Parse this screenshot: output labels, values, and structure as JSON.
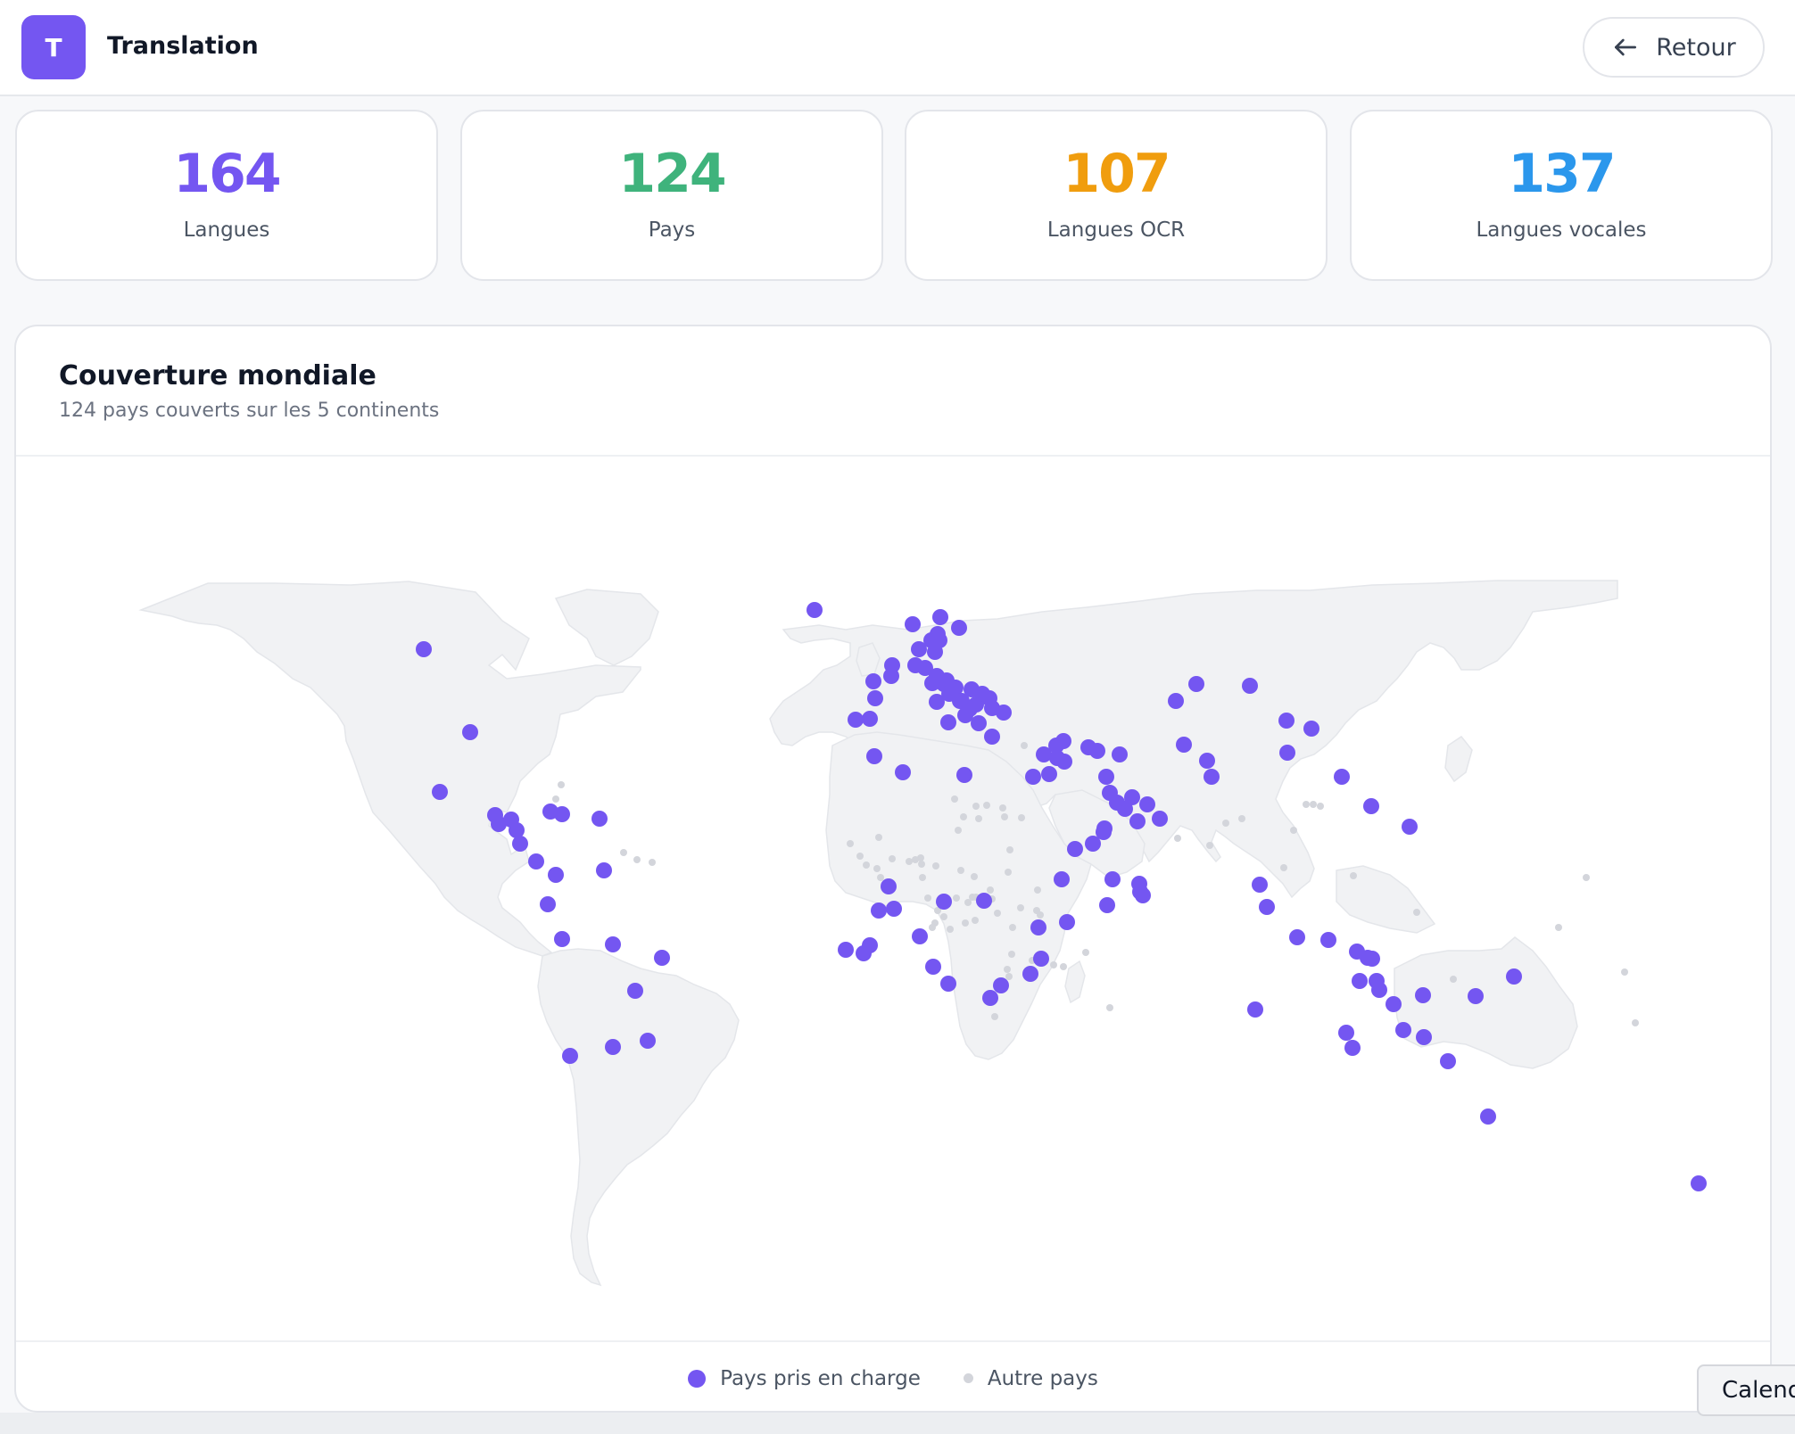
{
  "header": {
    "logo_letter": "T",
    "app_title": "Translation",
    "back_label": "Retour",
    "back_icon": "arrow-left-icon"
  },
  "stats": [
    {
      "value": "164",
      "label": "Langues",
      "color": "#7456f1"
    },
    {
      "value": "124",
      "label": "Pays",
      "color": "#3fb37c"
    },
    {
      "value": "107",
      "label": "Langues OCR",
      "color": "#f09d0e"
    },
    {
      "value": "137",
      "label": "Langues vocales",
      "color": "#2b97ec"
    }
  ],
  "map": {
    "title": "Couverture mondiale",
    "subtitle": "124 pays couverts sur les 5 continents",
    "legend": {
      "supported": "Pays pris en charge",
      "other": "Autre pays"
    },
    "colors": {
      "supported": "#7456f1",
      "other": "#d3d5db",
      "land": "#f1f2f4"
    }
  },
  "floating_tab": {
    "label": "Calendar"
  }
}
